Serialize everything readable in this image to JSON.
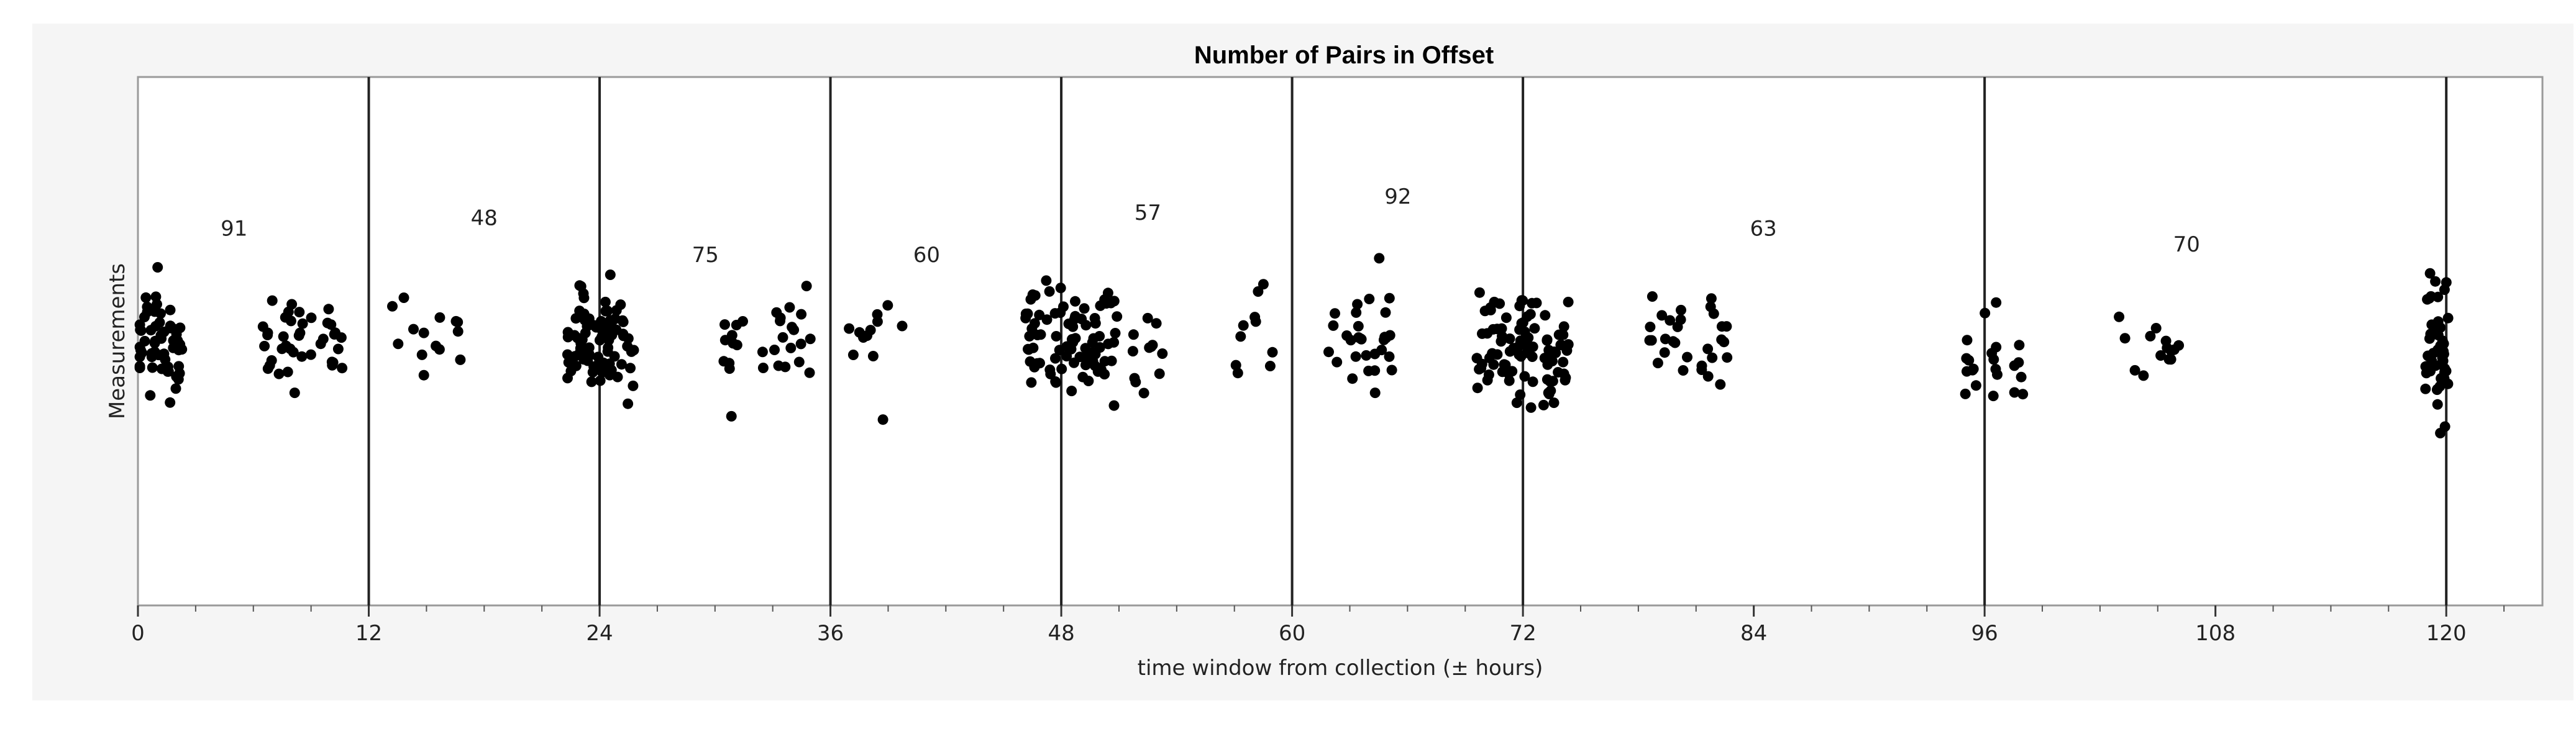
{
  "chart_data": {
    "type": "scatter",
    "title": "Number of Pairs in Offset",
    "xlabel": "time window from collection (± hours)",
    "ylabel": "Measurements",
    "xlim": [
      0,
      125
    ],
    "ylim": [
      0,
      100
    ],
    "x_ticks": [
      "0",
      "12",
      "24",
      "36",
      "48",
      "60",
      "72",
      "84",
      "96",
      "108",
      "120"
    ],
    "x_tick_values": [
      0,
      12,
      24,
      36,
      48,
      60,
      72,
      84,
      96,
      108,
      120
    ],
    "x_minor_step": 3,
    "grid": false,
    "y_ticks_visible": false,
    "point_color": "#000000",
    "vertical_lines_x": [
      12,
      24,
      36,
      48,
      60,
      72,
      96,
      120
    ],
    "group_counts": [
      {
        "label": "91",
        "x": 5,
        "y": 70
      },
      {
        "label": "48",
        "x": 18,
        "y": 72
      },
      {
        "label": "75",
        "x": 29.5,
        "y": 65
      },
      {
        "label": "60",
        "x": 41,
        "y": 65
      },
      {
        "label": "57",
        "x": 52.5,
        "y": 73
      },
      {
        "label": "92",
        "x": 65.5,
        "y": 76
      },
      {
        "label": "63",
        "x": 84.5,
        "y": 70
      },
      {
        "label": "70",
        "x": 106.5,
        "y": 67
      }
    ],
    "point_clusters": [
      {
        "center": 1.0,
        "spread": 1.3,
        "count": 60,
        "y_mean": 49,
        "y_spread": 9
      },
      {
        "center": 8.5,
        "spread": 2.2,
        "count": 40,
        "y_mean": 49,
        "y_spread": 8
      },
      {
        "center": 15.0,
        "spread": 1.8,
        "count": 14,
        "y_mean": 52,
        "y_spread": 9
      },
      {
        "center": 24.0,
        "spread": 1.8,
        "count": 85,
        "y_mean": 50,
        "y_spread": 9
      },
      {
        "center": 32.5,
        "spread": 2.5,
        "count": 30,
        "y_mean": 49,
        "y_spread": 8
      },
      {
        "center": 38.5,
        "spread": 1.6,
        "count": 12,
        "y_mean": 50,
        "y_spread": 7
      },
      {
        "center": 48.5,
        "spread": 2.4,
        "count": 90,
        "y_mean": 50,
        "y_spread": 9
      },
      {
        "center": 52.5,
        "spread": 0.8,
        "count": 12,
        "y_mean": 50,
        "y_spread": 11
      },
      {
        "center": 58.0,
        "spread": 1.2,
        "count": 10,
        "y_mean": 51,
        "y_spread": 9
      },
      {
        "center": 63.5,
        "spread": 1.8,
        "count": 30,
        "y_mean": 50,
        "y_spread": 9
      },
      {
        "center": 72.0,
        "spread": 2.4,
        "count": 95,
        "y_mean": 48,
        "y_spread": 9
      },
      {
        "center": 80.5,
        "spread": 2.2,
        "count": 30,
        "y_mean": 48,
        "y_spread": 9
      },
      {
        "center": 96.5,
        "spread": 1.5,
        "count": 22,
        "y_mean": 46,
        "y_spread": 9
      },
      {
        "center": 104.5,
        "spread": 1.8,
        "count": 14,
        "y_mean": 49,
        "y_spread": 6
      },
      {
        "center": 119.5,
        "spread": 0.6,
        "count": 50,
        "y_mean": 48,
        "y_spread": 11
      }
    ]
  }
}
